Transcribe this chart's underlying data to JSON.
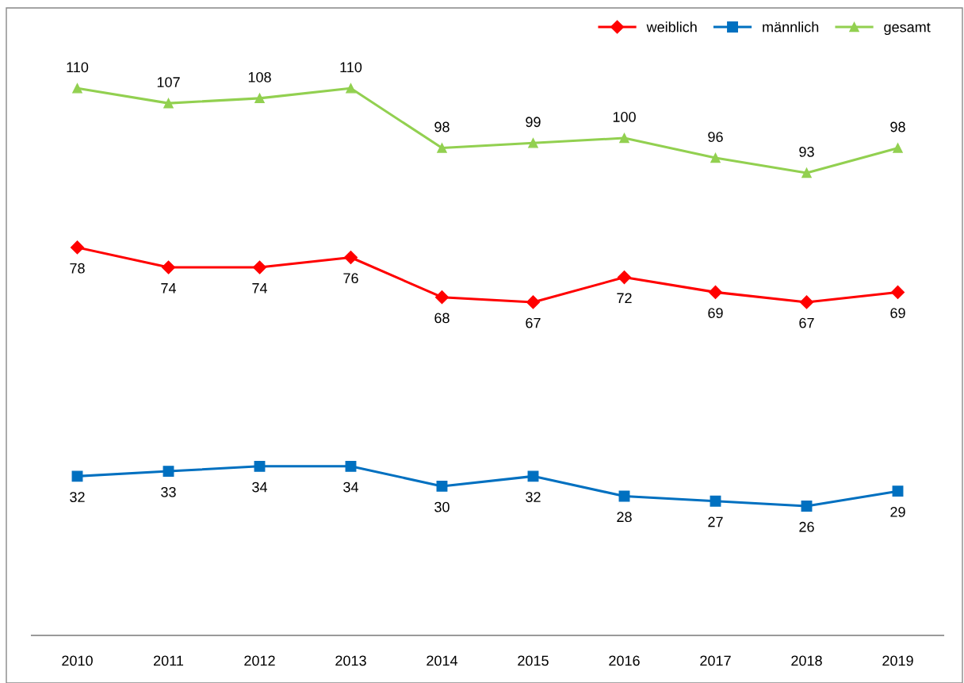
{
  "chart_data": {
    "type": "line",
    "categories": [
      "2010",
      "2011",
      "2012",
      "2013",
      "2014",
      "2015",
      "2016",
      "2017",
      "2018",
      "2019"
    ],
    "series": [
      {
        "name": "weiblich",
        "color": "#ff0000",
        "marker": "diamond",
        "values": [
          78,
          74,
          74,
          76,
          68,
          67,
          72,
          69,
          67,
          69
        ]
      },
      {
        "name": "männlich",
        "color": "#0070c0",
        "marker": "square",
        "values": [
          32,
          33,
          34,
          34,
          30,
          32,
          28,
          27,
          26,
          29
        ]
      },
      {
        "name": "gesamt",
        "color": "#92d050",
        "marker": "triangle",
        "values": [
          110,
          107,
          108,
          110,
          98,
          99,
          100,
          96,
          93,
          98
        ]
      }
    ],
    "ylim": [
      0,
      126
    ],
    "tick_labels": "x",
    "data_labels": true,
    "legend": "top right",
    "grid": false,
    "line_style": "solid"
  }
}
